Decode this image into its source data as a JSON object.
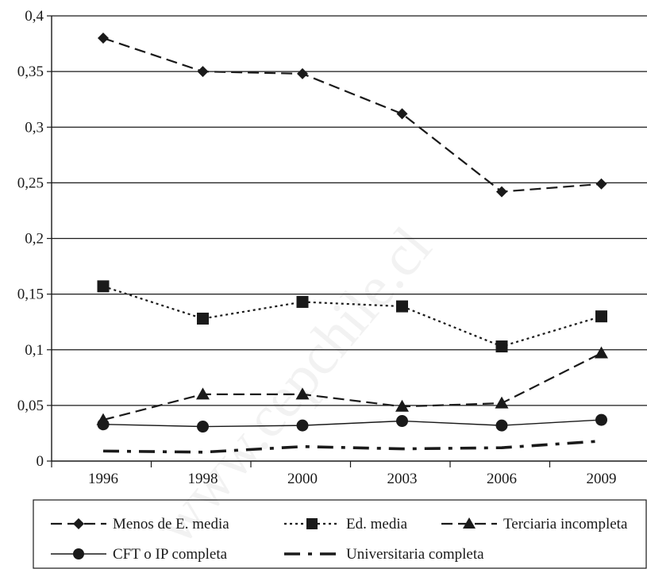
{
  "watermark": "www.cepchile.cl",
  "chart_data": {
    "type": "line",
    "title": "",
    "xlabel": "",
    "ylabel": "",
    "categories": [
      "1996",
      "1998",
      "2000",
      "2003",
      "2006",
      "2009"
    ],
    "ylim": [
      0,
      0.4
    ],
    "yticks": [
      0,
      0.05,
      0.1,
      0.15,
      0.2,
      0.25,
      0.3,
      0.35,
      0.4
    ],
    "ytick_labels": [
      "0",
      "0,05",
      "0,1",
      "0,15",
      "0,2",
      "0,25",
      "0,3",
      "0,35",
      "0,4"
    ],
    "grid": "horizontal",
    "legend_position": "bottom",
    "series": [
      {
        "name": "Menos de E.  media",
        "values": [
          0.38,
          0.35,
          0.348,
          0.312,
          0.242,
          0.249
        ],
        "marker": "diamond",
        "line": "dashed",
        "color": "#1a1a1a"
      },
      {
        "name": "Ed. media",
        "values": [
          0.157,
          0.128,
          0.143,
          0.139,
          0.103,
          0.13
        ],
        "marker": "square",
        "line": "dotted",
        "color": "#1a1a1a"
      },
      {
        "name": "Terciaria incompleta",
        "values": [
          0.037,
          0.06,
          0.06,
          0.049,
          0.052,
          0.097
        ],
        "marker": "triangle",
        "line": "dashed",
        "color": "#1a1a1a"
      },
      {
        "name": "CFT o IP completa",
        "values": [
          0.033,
          0.031,
          0.032,
          0.036,
          0.032,
          0.037
        ],
        "marker": "circle",
        "line": "solid",
        "color": "#1a1a1a"
      },
      {
        "name": "Universitaria completa",
        "values": [
          0.009,
          0.008,
          0.013,
          0.011,
          0.012,
          0.018
        ],
        "marker": "none",
        "line": "dashdot",
        "color": "#1a1a1a"
      }
    ]
  }
}
